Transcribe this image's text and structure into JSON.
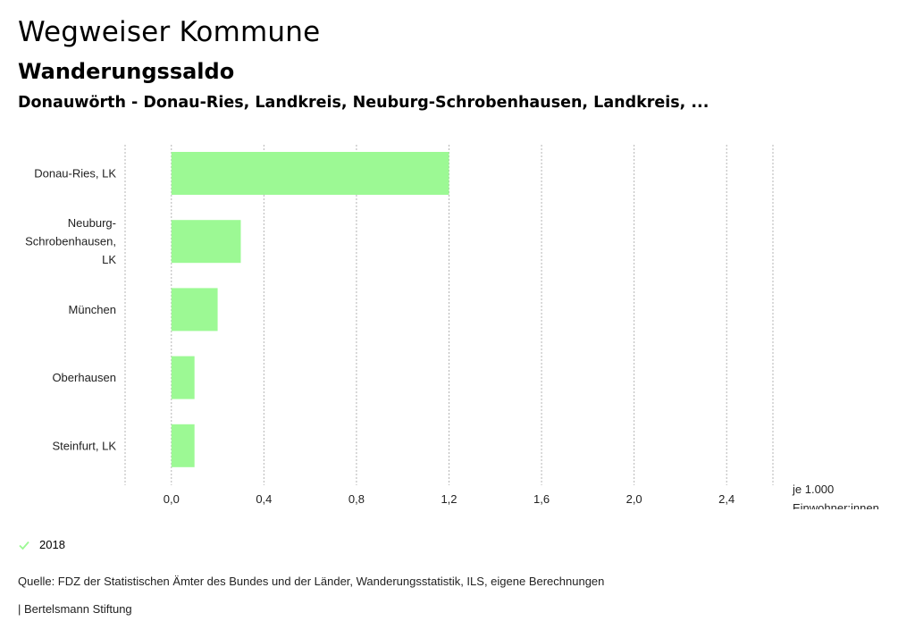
{
  "header": {
    "title": "Wegweiser Kommune",
    "subtitle": "Wanderungssaldo",
    "selection": "Donauwörth - Donau-Ries, Landkreis, Neuburg-Schrobenhausen, Landkreis, ..."
  },
  "chart_data": {
    "type": "bar",
    "orientation": "horizontal",
    "categories": [
      "Donau-Ries, LK",
      "Neuburg-Schrobenhausen, LK",
      "München",
      "Oberhausen",
      "Steinfurt, LK"
    ],
    "category_label_lines": [
      [
        "Donau-Ries, LK"
      ],
      [
        "Neuburg-",
        "Schrobenhausen,",
        "LK"
      ],
      [
        "München"
      ],
      [
        "Oberhausen"
      ],
      [
        "Steinfurt, LK"
      ]
    ],
    "series": [
      {
        "name": "2018",
        "values": [
          1.2,
          0.3,
          0.2,
          0.1,
          0.1
        ],
        "color": "#9cf994"
      }
    ],
    "xlim": [
      -0.2,
      2.6
    ],
    "xticks": [
      0.0,
      0.4,
      0.8,
      1.2,
      1.6,
      2.0,
      2.4
    ],
    "xtick_labels": [
      "0,0",
      "0,4",
      "0,8",
      "1,2",
      "1,6",
      "2,0",
      "2,4"
    ],
    "xlabel_lines": [
      "je 1.000",
      "Einwohner:innen"
    ],
    "grid": true,
    "legend_position": "bottom-left"
  },
  "legend": {
    "label": "2018",
    "icon": "check-icon",
    "color": "#9cf994"
  },
  "source": "Quelle: FDZ der Statistischen Ämter des Bundes und der Länder, Wanderungsstatistik, ILS, eigene Berechnungen",
  "footer": "| Bertelsmann Stiftung"
}
